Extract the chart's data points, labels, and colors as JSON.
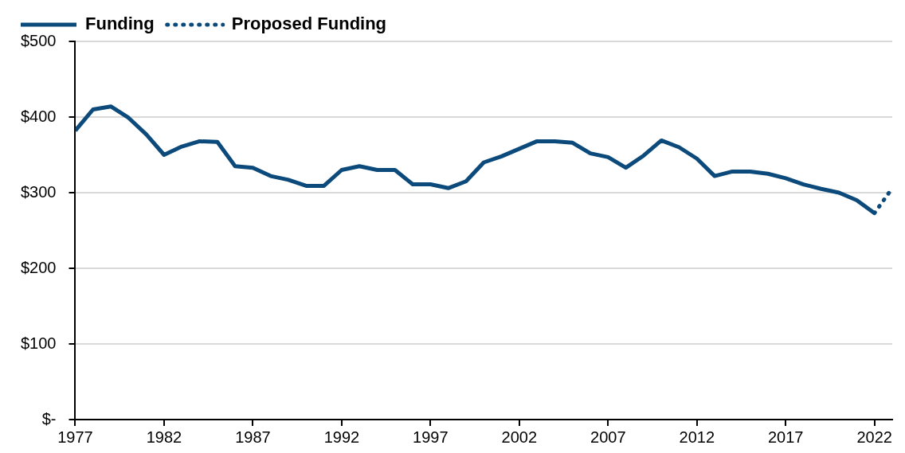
{
  "chart_data": {
    "type": "line",
    "x": [
      1977,
      1978,
      1979,
      1980,
      1981,
      1982,
      1983,
      1984,
      1985,
      1986,
      1987,
      1988,
      1989,
      1990,
      1991,
      1992,
      1993,
      1994,
      1995,
      1996,
      1997,
      1998,
      1999,
      2000,
      2001,
      2002,
      2003,
      2004,
      2005,
      2006,
      2007,
      2008,
      2009,
      2010,
      2011,
      2012,
      2013,
      2014,
      2015,
      2016,
      2017,
      2018,
      2019,
      2020,
      2021,
      2022,
      2023
    ],
    "series": [
      {
        "name": "Funding",
        "color": "#0b4a7a",
        "line_style": "solid",
        "values": [
          382,
          410,
          414,
          399,
          377,
          350,
          361,
          368,
          367,
          335,
          333,
          322,
          317,
          309,
          309,
          330,
          335,
          330,
          330,
          311,
          311,
          306,
          315,
          340,
          348,
          358,
          368,
          368,
          366,
          352,
          347,
          333,
          349,
          369,
          360,
          345,
          322,
          328,
          328,
          325,
          319,
          311,
          305,
          300,
          290,
          273,
          null
        ]
      },
      {
        "name": "Proposed Funding",
        "color": "#0b4a7a",
        "line_style": "dotted",
        "values": [
          null,
          null,
          null,
          null,
          null,
          null,
          null,
          null,
          null,
          null,
          null,
          null,
          null,
          null,
          null,
          null,
          null,
          null,
          null,
          null,
          null,
          null,
          null,
          null,
          null,
          null,
          null,
          null,
          null,
          null,
          null,
          null,
          null,
          null,
          null,
          null,
          null,
          null,
          null,
          null,
          null,
          null,
          null,
          null,
          null,
          273,
          306
        ]
      }
    ],
    "xlim": [
      1977,
      2023
    ],
    "xticks": [
      1977,
      1982,
      1987,
      1992,
      1997,
      2002,
      2007,
      2012,
      2017,
      2022
    ],
    "ylim": [
      0,
      500
    ],
    "yticks": [
      {
        "value": 0,
        "label": "$-"
      },
      {
        "value": 100,
        "label": "$100"
      },
      {
        "value": 200,
        "label": "$200"
      },
      {
        "value": 300,
        "label": "$300"
      },
      {
        "value": 400,
        "label": "$400"
      },
      {
        "value": 500,
        "label": "$500"
      }
    ],
    "grid": "y",
    "legend": "top left",
    "marker": "none"
  }
}
